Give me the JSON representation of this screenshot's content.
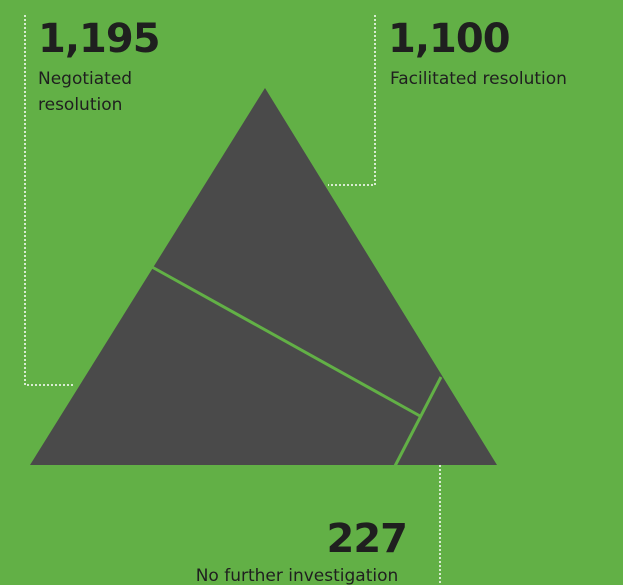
{
  "items": [
    {
      "value": "1,195",
      "label": [
        "Negotiated",
        "resolution"
      ]
    },
    {
      "value": "1,100",
      "label": [
        "Facilitated resolution"
      ]
    },
    {
      "value": "227",
      "label": [
        "No further investigation"
      ]
    }
  ]
}
